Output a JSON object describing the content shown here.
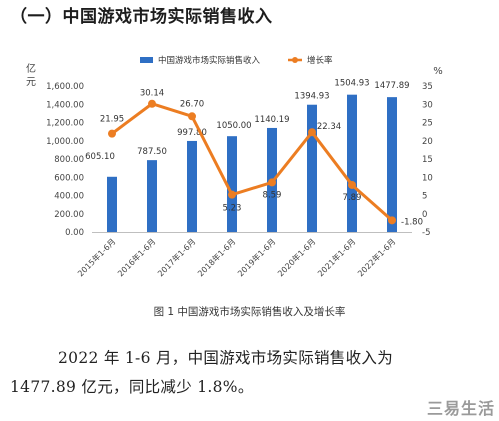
{
  "heading": "（一）中国游戏市场实际销售收入",
  "chart_data": {
    "type": "bar",
    "categories": [
      "2015年1-6月",
      "2016年1-6月",
      "2017年1-6月",
      "2018年1-6月",
      "2019年1-6月",
      "2020年1-6月",
      "2021年1-6月",
      "2022年1-6月"
    ],
    "series": [
      {
        "name": "中国游戏市场实际销售收入",
        "type": "bar",
        "axis": "left",
        "color": "#2f6fc4",
        "values": [
          605.1,
          787.5,
          997.8,
          1050.0,
          1140.19,
          1394.93,
          1504.93,
          1477.89
        ],
        "labels": [
          "605.10",
          "787.50",
          "997.80",
          "1050.00",
          "1140.19",
          "1394.93",
          "1504.93",
          "1477.89"
        ]
      },
      {
        "name": "增长率",
        "type": "line",
        "axis": "right",
        "color": "#ec7d22",
        "values": [
          21.95,
          30.14,
          26.7,
          5.23,
          8.59,
          22.34,
          7.89,
          -1.8
        ],
        "labels": [
          "21.95",
          "30.14",
          "26.70",
          "5.23",
          "8.59",
          "22.34",
          "7.89",
          "-1.80"
        ]
      }
    ],
    "y_left": {
      "label": "亿元",
      "ylim": [
        0,
        1600
      ],
      "ticks": [
        "0.00",
        "200.00",
        "400.00",
        "600.00",
        "800.00",
        "1,000.00",
        "1,200.00",
        "1,400.00",
        "1,600.00"
      ]
    },
    "y_right": {
      "label": "%",
      "ylim": [
        -5,
        35
      ],
      "ticks": [
        "-5",
        "0",
        "5",
        "10",
        "15",
        "20",
        "25",
        "30",
        "35"
      ]
    },
    "legend_position": "top",
    "grid": false
  },
  "caption": "图 1 中国游戏市场实际销售收入及增长率",
  "body": {
    "line1": "2022 年 1-6 月，中国游戏市场实际销售收入为",
    "line2": "1477.89 亿元，同比减少 1.8%。"
  },
  "watermark": "三易生活"
}
